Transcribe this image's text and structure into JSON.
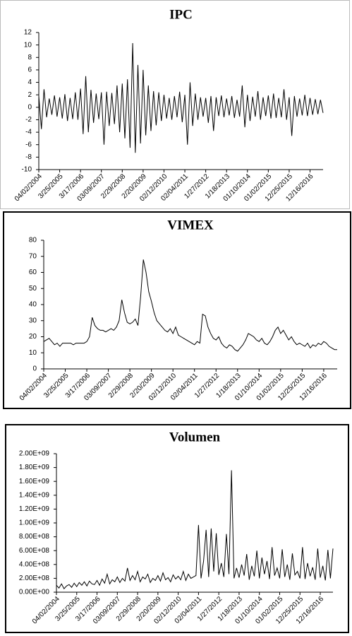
{
  "chart_data": [
    {
      "type": "line",
      "title": "IPC",
      "color": "#000000",
      "categories": [
        "04/02/2004",
        null,
        null,
        null,
        null,
        null,
        null,
        null,
        "3/25/2005",
        null,
        null,
        null,
        null,
        null,
        null,
        null,
        "3/17/2006",
        null,
        null,
        null,
        null,
        null,
        null,
        null,
        "03/09/2007",
        null,
        null,
        null,
        null,
        null,
        null,
        null,
        "2/29/2008",
        null,
        null,
        null,
        null,
        null,
        null,
        null,
        "2/20/2009",
        null,
        null,
        null,
        null,
        null,
        null,
        null,
        "02/12/2010",
        null,
        null,
        null,
        null,
        null,
        null,
        null,
        "02/04/2011",
        null,
        null,
        null,
        null,
        null,
        null,
        null,
        "1/27/2012",
        null,
        null,
        null,
        null,
        null,
        null,
        null,
        "1/18/2013",
        null,
        null,
        null,
        null,
        null,
        null,
        null,
        "01/10/2014",
        null,
        null,
        null,
        null,
        null,
        null,
        null,
        "01/02/2015",
        null,
        null,
        null,
        null,
        null,
        null,
        null,
        "12/25/2015",
        null,
        null,
        null,
        null,
        null,
        null,
        null,
        "12/16/2016",
        null,
        null,
        null,
        null,
        null
      ],
      "values": [
        1.8,
        -3.5,
        2.9,
        -1.6,
        1.4,
        -1.2,
        1.9,
        -1.5,
        1.6,
        -1.8,
        2.1,
        -2.2,
        1.5,
        -1.9,
        2.4,
        -2.0,
        3.0,
        -4.3,
        5.0,
        -4.0,
        2.8,
        -2.5,
        2.2,
        -1.9,
        2.4,
        -6.0,
        2.5,
        -3.0,
        2.3,
        -2.7,
        3.5,
        -4.0,
        3.8,
        -5.0,
        4.5,
        -6.5,
        10.3,
        -7.3,
        6.8,
        -5.8,
        6.0,
        -4.5,
        3.5,
        -3.8,
        2.6,
        -2.9,
        2.4,
        -2.2,
        2.0,
        -1.8,
        1.5,
        -2.0,
        1.8,
        -1.6,
        2.5,
        -2.4,
        2.0,
        -6.0,
        4.0,
        -3.0,
        2.2,
        -2.0,
        1.6,
        -1.5,
        1.5,
        -2.5,
        1.8,
        -3.8,
        1.6,
        -1.4,
        1.9,
        -1.6,
        1.4,
        -1.3,
        1.8,
        -1.7,
        1.2,
        -1.5,
        3.5,
        -3.2,
        2.0,
        -2.2,
        1.7,
        -1.5,
        2.6,
        -2.0,
        1.6,
        -1.4,
        1.9,
        -1.8,
        2.2,
        -1.7,
        1.5,
        -1.6,
        2.9,
        -2.0,
        1.6,
        -4.6,
        1.8,
        -1.5,
        1.4,
        -1.3,
        2.0,
        -1.4,
        1.5,
        -1.2,
        1.3,
        -1.1,
        1.2,
        -0.9
      ],
      "ylim": [
        -10,
        12
      ],
      "yticks": [
        -10,
        -8,
        -6,
        -4,
        -2,
        0,
        2,
        4,
        6,
        8,
        10,
        12
      ]
    },
    {
      "type": "line",
      "title": "VIMEX",
      "color": "#000000",
      "categories": [
        "04/02/2004",
        null,
        null,
        null,
        null,
        null,
        null,
        null,
        "3/25/2005",
        null,
        null,
        null,
        null,
        null,
        null,
        null,
        "3/17/2006",
        null,
        null,
        null,
        null,
        null,
        null,
        null,
        "03/09/2007",
        null,
        null,
        null,
        null,
        null,
        null,
        null,
        "2/29/2008",
        null,
        null,
        null,
        null,
        null,
        null,
        null,
        "2/20/2009",
        null,
        null,
        null,
        null,
        null,
        null,
        null,
        "02/12/2010",
        null,
        null,
        null,
        null,
        null,
        null,
        null,
        "02/04/2011",
        null,
        null,
        null,
        null,
        null,
        null,
        null,
        "1/27/2012",
        null,
        null,
        null,
        null,
        null,
        null,
        null,
        "1/18/2013",
        null,
        null,
        null,
        null,
        null,
        null,
        null,
        "01/10/2014",
        null,
        null,
        null,
        null,
        null,
        null,
        null,
        "01/02/2015",
        null,
        null,
        null,
        null,
        null,
        null,
        null,
        "12/25/2015",
        null,
        null,
        null,
        null,
        null,
        null,
        null,
        "12/16/2016",
        null,
        null,
        null,
        null,
        null
      ],
      "values": [
        17,
        18,
        19,
        17,
        15,
        16,
        14,
        16,
        16,
        16,
        16,
        15,
        16,
        16,
        16,
        16,
        17,
        20,
        32,
        27,
        25,
        24,
        24,
        23,
        24,
        25,
        24,
        26,
        30,
        43,
        35,
        29,
        28,
        29,
        31,
        27,
        45,
        68,
        60,
        48,
        42,
        35,
        30,
        28,
        26,
        24,
        23,
        25,
        22,
        26,
        21,
        20,
        19,
        18,
        17,
        16,
        15,
        17,
        16,
        34,
        33,
        26,
        22,
        19,
        18,
        20,
        16,
        14,
        13,
        15,
        14,
        12,
        11,
        13,
        15,
        18,
        22,
        21,
        20,
        18,
        17,
        19,
        16,
        15,
        17,
        20,
        24,
        26,
        22,
        24,
        21,
        18,
        20,
        17,
        15,
        16,
        15,
        14,
        16,
        13,
        15,
        14,
        16,
        15,
        17,
        16,
        14,
        13,
        12,
        12
      ],
      "ylim": [
        0,
        80
      ],
      "yticks": [
        0,
        10,
        20,
        30,
        40,
        50,
        60,
        70,
        80
      ]
    },
    {
      "type": "line",
      "title": "Volumen",
      "color": "#000000",
      "categories": [
        "04/02/2004",
        null,
        null,
        null,
        null,
        null,
        null,
        null,
        "3/25/2005",
        null,
        null,
        null,
        null,
        null,
        null,
        null,
        "3/17/2006",
        null,
        null,
        null,
        null,
        null,
        null,
        null,
        "03/09/2007",
        null,
        null,
        null,
        null,
        null,
        null,
        null,
        "2/29/2008",
        null,
        null,
        null,
        null,
        null,
        null,
        null,
        "2/20/2009",
        null,
        null,
        null,
        null,
        null,
        null,
        null,
        "02/12/2010",
        null,
        null,
        null,
        null,
        null,
        null,
        null,
        "02/04/2011",
        null,
        null,
        null,
        null,
        null,
        null,
        null,
        "1/27/2012",
        null,
        null,
        null,
        null,
        null,
        null,
        null,
        "1/18/2013",
        null,
        null,
        null,
        null,
        null,
        null,
        null,
        "01/10/2014",
        null,
        null,
        null,
        null,
        null,
        null,
        null,
        "01/02/2015",
        null,
        null,
        null,
        null,
        null,
        null,
        null,
        "12/25/2015",
        null,
        null,
        null,
        null,
        null,
        null,
        null,
        "12/16/2016",
        null,
        null,
        null,
        null,
        null
      ],
      "values": [
        100000000.0,
        60000000.0,
        120000000.0,
        50000000.0,
        90000000.0,
        110000000.0,
        70000000.0,
        130000000.0,
        80000000.0,
        140000000.0,
        100000000.0,
        150000000.0,
        90000000.0,
        160000000.0,
        120000000.0,
        110000000.0,
        170000000.0,
        100000000.0,
        190000000.0,
        130000000.0,
        260000000.0,
        120000000.0,
        180000000.0,
        150000000.0,
        220000000.0,
        140000000.0,
        200000000.0,
        160000000.0,
        350000000.0,
        170000000.0,
        240000000.0,
        180000000.0,
        300000000.0,
        150000000.0,
        220000000.0,
        190000000.0,
        260000000.0,
        140000000.0,
        200000000.0,
        170000000.0,
        240000000.0,
        160000000.0,
        280000000.0,
        180000000.0,
        210000000.0,
        150000000.0,
        250000000.0,
        190000000.0,
        230000000.0,
        180000000.0,
        300000000.0,
        170000000.0,
        260000000.0,
        200000000.0,
        220000000.0,
        240000000.0,
        970000000.0,
        200000000.0,
        450000000.0,
        900000000.0,
        220000000.0,
        920000000.0,
        300000000.0,
        850000000.0,
        250000000.0,
        420000000.0,
        220000000.0,
        840000000.0,
        260000000.0,
        1760000000.0,
        200000000.0,
        350000000.0,
        210000000.0,
        400000000.0,
        240000000.0,
        550000000.0,
        180000000.0,
        380000000.0,
        230000000.0,
        600000000.0,
        200000000.0,
        500000000.0,
        260000000.0,
        450000000.0,
        190000000.0,
        650000000.0,
        240000000.0,
        350000000.0,
        200000000.0,
        620000000.0,
        220000000.0,
        400000000.0,
        180000000.0,
        560000000.0,
        250000000.0,
        300000000.0,
        200000000.0,
        650000000.0,
        190000000.0,
        420000000.0,
        230000000.0,
        360000000.0,
        180000000.0,
        630000000.0,
        210000000.0,
        380000000.0,
        170000000.0,
        610000000.0,
        200000000.0,
        630000000.0
      ],
      "ylim": [
        0,
        2000000000
      ],
      "yticks": [
        {
          "value": 0,
          "label": "0.00E+00"
        },
        {
          "value": 200000000,
          "label": "2.00E+08"
        },
        {
          "value": 400000000,
          "label": "4.00E+08"
        },
        {
          "value": 600000000,
          "label": "6.00E+08"
        },
        {
          "value": 800000000,
          "label": "8.00E+08"
        },
        {
          "value": 1000000000,
          "label": "1.00E+09"
        },
        {
          "value": 1200000000,
          "label": "1.20E+09"
        },
        {
          "value": 1400000000,
          "label": "1.40E+09"
        },
        {
          "value": 1600000000,
          "label": "1.60E+09"
        },
        {
          "value": 1800000000,
          "label": "1.80E+09"
        },
        {
          "value": 2000000000,
          "label": "2.00E+09"
        }
      ]
    }
  ]
}
